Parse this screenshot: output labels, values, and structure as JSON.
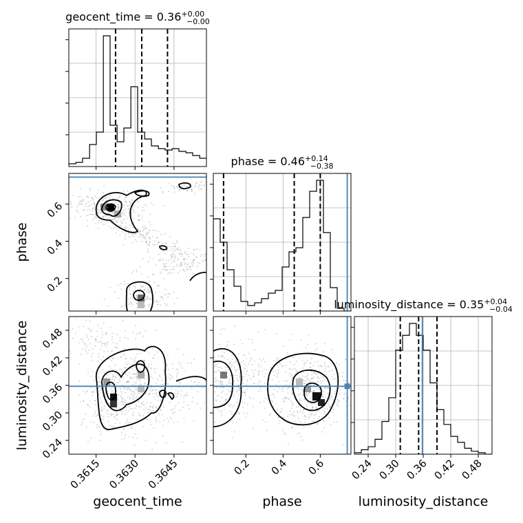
{
  "chart_data": {
    "type": "corner",
    "parameters": [
      "geocent_time",
      "phase",
      "luminosity_distance"
    ],
    "titles": [
      {
        "param": "geocent_time",
        "text": "geocent_time = 0.36",
        "plus": "+0.00",
        "minus": "−0.00"
      },
      {
        "param": "phase",
        "text": "phase = 0.46",
        "plus": "+0.14",
        "minus": "−0.38"
      },
      {
        "param": "luminosity_distance",
        "text": "luminosity_distance = 0.35",
        "plus": "+0.04",
        "minus": "−0.04"
      }
    ],
    "axes": {
      "geocent_time": {
        "range": [
          0.36045,
          0.36575
        ],
        "ticks": [
          0.3615,
          0.363,
          0.3645
        ],
        "tick_labels": [
          "0.3615",
          "0.3630",
          "0.3645"
        ]
      },
      "phase": {
        "range": [
          0.025,
          0.765
        ],
        "ticks": [
          0.2,
          0.4,
          0.6
        ],
        "tick_labels": [
          "0.2",
          "0.4",
          "0.6"
        ]
      },
      "luminosity_distance": {
        "range": [
          0.21,
          0.51
        ],
        "ticks": [
          0.24,
          0.3,
          0.36,
          0.42,
          0.48
        ],
        "tick_labels": [
          "0.24",
          "0.30",
          "0.36",
          "0.42",
          "0.48"
        ]
      }
    },
    "truths": {
      "phase": 0.745,
      "luminosity_distance": 0.358
    },
    "quantiles": {
      "geocent_time": [
        0.36225,
        0.36326,
        0.36425
      ],
      "phase": [
        0.08,
        0.46,
        0.6
      ],
      "luminosity_distance": [
        0.31,
        0.35,
        0.39
      ]
    },
    "histograms": {
      "geocent_time": {
        "edges": [
          0.36045,
          0.36072,
          0.36098,
          0.36125,
          0.36151,
          0.36178,
          0.36204,
          0.36231,
          0.36257,
          0.36284,
          0.3631,
          0.36337,
          0.36363,
          0.3639,
          0.36416,
          0.36443,
          0.36469,
          0.36496,
          0.36522,
          0.36549,
          0.36575
        ],
        "counts": [
          0.02,
          0.03,
          0.06,
          0.16,
          0.25,
          0.95,
          0.3,
          0.18,
          0.28,
          0.58,
          0.25,
          0.2,
          0.15,
          0.13,
          0.12,
          0.13,
          0.11,
          0.1,
          0.08,
          0.06
        ]
      },
      "phase": {
        "edges": [
          0.025,
          0.062,
          0.099,
          0.136,
          0.173,
          0.21,
          0.247,
          0.284,
          0.321,
          0.358,
          0.395,
          0.432,
          0.469,
          0.506,
          0.543,
          0.58,
          0.617,
          0.654,
          0.691,
          0.728,
          0.765
        ],
        "counts": [
          0.67,
          0.5,
          0.3,
          0.18,
          0.07,
          0.04,
          0.06,
          0.09,
          0.13,
          0.15,
          0.32,
          0.43,
          0.46,
          0.68,
          0.87,
          0.95,
          0.57,
          0.17,
          0.02,
          0.0
        ]
      },
      "luminosity_distance": {
        "edges": [
          0.21,
          0.225,
          0.24,
          0.255,
          0.27,
          0.285,
          0.3,
          0.315,
          0.33,
          0.345,
          0.36,
          0.375,
          0.39,
          0.405,
          0.42,
          0.435,
          0.45,
          0.465,
          0.48,
          0.495,
          0.51
        ],
        "counts": [
          0.01,
          0.03,
          0.05,
          0.1,
          0.22,
          0.38,
          0.7,
          0.8,
          0.88,
          0.8,
          0.7,
          0.48,
          0.3,
          0.2,
          0.12,
          0.08,
          0.04,
          0.02,
          0.01,
          0.0
        ]
      }
    }
  }
}
